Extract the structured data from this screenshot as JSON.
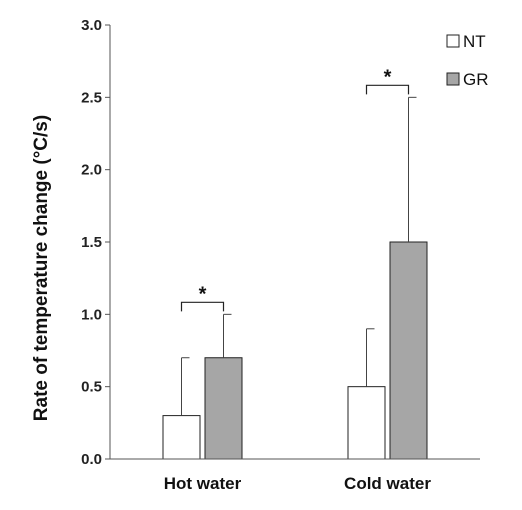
{
  "chart_data": {
    "type": "bar",
    "categories": [
      "Hot water",
      "Cold water"
    ],
    "series": [
      {
        "name": "NT",
        "values": [
          0.3,
          0.5
        ],
        "errors": [
          0.4,
          0.4
        ],
        "color": "#ffffff"
      },
      {
        "name": "GR",
        "values": [
          0.7,
          1.5
        ],
        "errors": [
          0.3,
          1.0
        ],
        "color": "#a6a6a6"
      }
    ],
    "ylabel": "Rate of temperature change (°C/s)",
    "ylim": [
      0,
      3.0
    ],
    "yticks": [
      "0.0",
      "0.5",
      "1.0",
      "1.5",
      "2.0",
      "2.5",
      "3.0"
    ],
    "grid": false,
    "legend_position": "top-right",
    "significance": [
      {
        "category": "Hot water",
        "label": "*"
      },
      {
        "category": "Cold water",
        "label": "*"
      }
    ]
  }
}
